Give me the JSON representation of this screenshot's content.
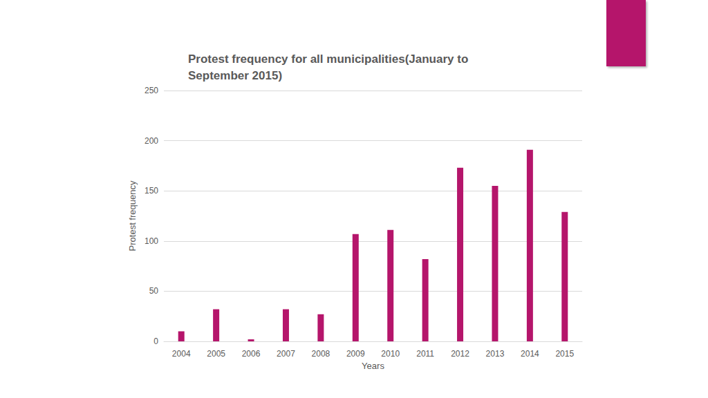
{
  "chart_data": {
    "type": "bar",
    "title": "Protest frequency for all municipalities(January to September 2015)",
    "x_label": "Years",
    "y_label": "Protest frequency",
    "categories": [
      "2004",
      "2005",
      "2006",
      "2007",
      "2008",
      "2009",
      "2010",
      "2011",
      "2012",
      "2013",
      "2014",
      "2015"
    ],
    "values": [
      10,
      32,
      2,
      32,
      27,
      107,
      111,
      82,
      173,
      155,
      191,
      129
    ],
    "color": "#b5156b",
    "ylim": [
      0,
      250
    ],
    "yticks": [
      0,
      50,
      100,
      150,
      200,
      250
    ],
    "grid": true
  }
}
